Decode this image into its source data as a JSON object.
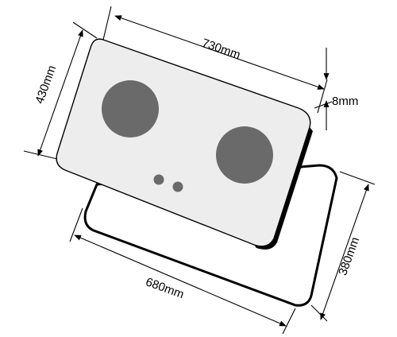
{
  "dimensions": {
    "top_width": "730mm",
    "left_height": "430mm",
    "thickness": "8mm",
    "cutout_height": "380mm",
    "cutout_width": "680mm"
  },
  "colors": {
    "burner": "#6a6a6a",
    "panel_fill": "#ededed",
    "outline": "#000000",
    "knob": "#6a6a6a"
  }
}
